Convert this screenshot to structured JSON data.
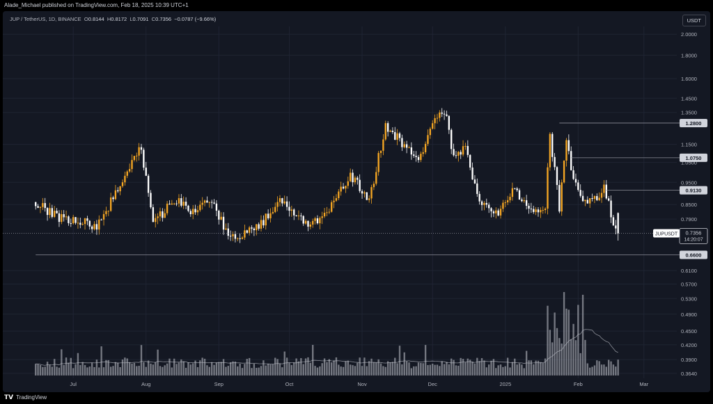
{
  "header": {
    "publish_line": "Alade_Michael published on TradingView.com, Feb 18, 2025 10:39 UTC+1"
  },
  "legend": {
    "symbol": "JUP / TetherUS, 1D, BINANCE",
    "o_label": "O",
    "o_value": "0.8144",
    "h_label": "H",
    "h_value": "0.8172",
    "l_label": "L",
    "l_value": "0.7091",
    "c_label": "C",
    "c_value": "0.7356",
    "change": "−0.0787 (−9.66%)"
  },
  "currency_button": "USDT",
  "footer": {
    "brand": "TradingView",
    "icon": "tradingview-logo-icon"
  },
  "colors": {
    "background": "#141823",
    "bull": "#f5a623",
    "bear": "#ffffff",
    "grid": "#1f2433",
    "axis_text": "#b2b5be",
    "level_line": "#8b8e98",
    "volume_bar": "#9598a1",
    "volume_ma": "#c0c3cc"
  },
  "chart_data": {
    "type": "candlestick",
    "symbol": "JUPUSDT",
    "interval": "1D",
    "y_scale": "log",
    "ylim": [
      0.355,
      2.08
    ],
    "y_ticks": [
      "2.0000",
      "1.8000",
      "1.6000",
      "1.4500",
      "1.3500",
      "1.1500",
      "1.0500",
      "0.9500",
      "0.8500",
      "0.7900",
      "0.6100",
      "0.5700",
      "0.5300",
      "0.4900",
      "0.4500",
      "0.4200",
      "0.3900",
      "0.3640"
    ],
    "x_labels": [
      "Jul",
      "Aug",
      "Sep",
      "Oct",
      "Nov",
      "Dec",
      "2025",
      "Feb",
      "Mar"
    ],
    "price_series": [
      {
        "date": "2024-06-15",
        "close": 0.86
      },
      {
        "date": "2024-06-25",
        "close": 0.8
      },
      {
        "date": "2024-07-05",
        "close": 0.78
      },
      {
        "date": "2024-07-12",
        "close": 0.76
      },
      {
        "date": "2024-07-18",
        "close": 0.86
      },
      {
        "date": "2024-07-26",
        "close": 1.02
      },
      {
        "date": "2024-07-31",
        "close": 1.13
      },
      {
        "date": "2024-08-05",
        "close": 0.77
      },
      {
        "date": "2024-08-14",
        "close": 0.87
      },
      {
        "date": "2024-08-22",
        "close": 0.82
      },
      {
        "date": "2024-08-30",
        "close": 0.87
      },
      {
        "date": "2024-09-06",
        "close": 0.72
      },
      {
        "date": "2024-09-12",
        "close": 0.73
      },
      {
        "date": "2024-09-20",
        "close": 0.77
      },
      {
        "date": "2024-09-28",
        "close": 0.88
      },
      {
        "date": "2024-10-05",
        "close": 0.8
      },
      {
        "date": "2024-10-12",
        "close": 0.77
      },
      {
        "date": "2024-10-20",
        "close": 0.84
      },
      {
        "date": "2024-10-28",
        "close": 0.99
      },
      {
        "date": "2024-11-05",
        "close": 0.86
      },
      {
        "date": "2024-11-12",
        "close": 1.27
      },
      {
        "date": "2024-11-20",
        "close": 1.14
      },
      {
        "date": "2024-11-26",
        "close": 1.05
      },
      {
        "date": "2024-12-03",
        "close": 1.33
      },
      {
        "date": "2024-12-08",
        "close": 1.36
      },
      {
        "date": "2024-12-10",
        "close": 1.1
      },
      {
        "date": "2024-12-16",
        "close": 1.12
      },
      {
        "date": "2024-12-22",
        "close": 0.85
      },
      {
        "date": "2024-12-30",
        "close": 0.82
      },
      {
        "date": "2025-01-06",
        "close": 0.92
      },
      {
        "date": "2025-01-12",
        "close": 0.82
      },
      {
        "date": "2025-01-19",
        "close": 0.84
      },
      {
        "date": "2025-01-21",
        "close": 1.2
      },
      {
        "date": "2025-01-25",
        "close": 0.84
      },
      {
        "date": "2025-01-28",
        "close": 1.2
      },
      {
        "date": "2025-01-31",
        "close": 0.95
      },
      {
        "date": "2025-02-05",
        "close": 0.86
      },
      {
        "date": "2025-02-10",
        "close": 0.88
      },
      {
        "date": "2025-02-13",
        "close": 0.93
      },
      {
        "date": "2025-02-18",
        "close": 0.7356
      }
    ],
    "levels": [
      {
        "label": "1.2800",
        "value": 1.28,
        "start_date": "2025-01-24"
      },
      {
        "label": "1.0750",
        "value": 1.075,
        "start_date": "2025-01-29"
      },
      {
        "label": "0.9130",
        "value": 0.913,
        "start_date": "2025-02-13"
      },
      {
        "label": "0.6600",
        "value": 0.66,
        "start_date": "2024-06-15"
      }
    ],
    "current_price": {
      "symbol": "JUPUSDT",
      "value": "0.7356",
      "countdown": "14:20:07",
      "price": 0.7356
    },
    "volume_hint": "volume histogram with moving average"
  }
}
